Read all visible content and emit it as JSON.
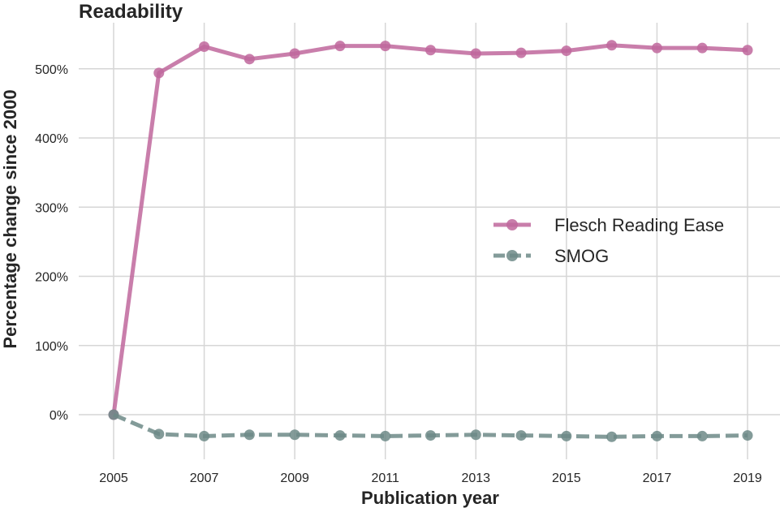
{
  "chart_data": {
    "type": "line",
    "title": "Readability",
    "xlabel": "Publication year",
    "ylabel": "Percentage change since 2000",
    "x": [
      2005,
      2006,
      2007,
      2008,
      2009,
      2010,
      2011,
      2012,
      2013,
      2014,
      2015,
      2016,
      2017,
      2018,
      2019
    ],
    "xticks": [
      2005,
      2007,
      2009,
      2011,
      2013,
      2015,
      2017,
      2019
    ],
    "yticks": [
      0,
      100,
      200,
      300,
      400,
      500
    ],
    "ytick_labels": [
      "0%",
      "100%",
      "200%",
      "300%",
      "400%",
      "500%"
    ],
    "xlim": [
      2004.2,
      2019.8
    ],
    "ylim": [
      -60,
      560
    ],
    "grid": true,
    "legend_position": "center-right",
    "series": [
      {
        "name": "Flesch Reading Ease",
        "color": "#c0679c",
        "style": "solid",
        "values": [
          0,
          494,
          532,
          514,
          522,
          533,
          533,
          527,
          522,
          523,
          526,
          534,
          530,
          530,
          527
        ]
      },
      {
        "name": "SMOG",
        "color": "#6d8a87",
        "style": "dashed",
        "values": [
          0,
          -28,
          -31,
          -29,
          -29,
          -30,
          -31,
          -30,
          -29,
          -30,
          -31,
          -32,
          -31,
          -31,
          -30
        ]
      }
    ]
  }
}
